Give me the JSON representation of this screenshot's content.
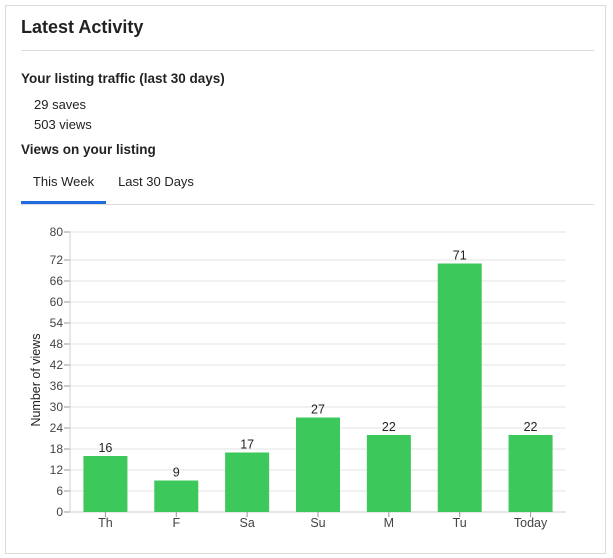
{
  "card": {
    "title": "Latest Activity"
  },
  "traffic": {
    "title": "Your listing traffic (last 30 days)",
    "saves": "29 saves",
    "views": "503 views"
  },
  "views_section": {
    "title": "Views on your listing",
    "tabs": [
      {
        "label": "This Week",
        "active": true
      },
      {
        "label": "Last 30 Days",
        "active": false
      }
    ]
  },
  "colors": {
    "bar": "#3cc85a",
    "tab_active": "#1f6ce0",
    "gridline": "#e3e3e3"
  },
  "chart_data": {
    "type": "bar",
    "categories": [
      "Th",
      "F",
      "Sa",
      "Su",
      "M",
      "Tu",
      "Today"
    ],
    "values": [
      16,
      9,
      17,
      27,
      22,
      71,
      22
    ],
    "ylabel": "Number of views",
    "xlabel": "",
    "ylim": [
      0,
      80
    ],
    "yticks": [
      0,
      6,
      12,
      18,
      24,
      30,
      36,
      42,
      48,
      54,
      60,
      66,
      72,
      80
    ],
    "grid": true,
    "data_labels": true
  }
}
